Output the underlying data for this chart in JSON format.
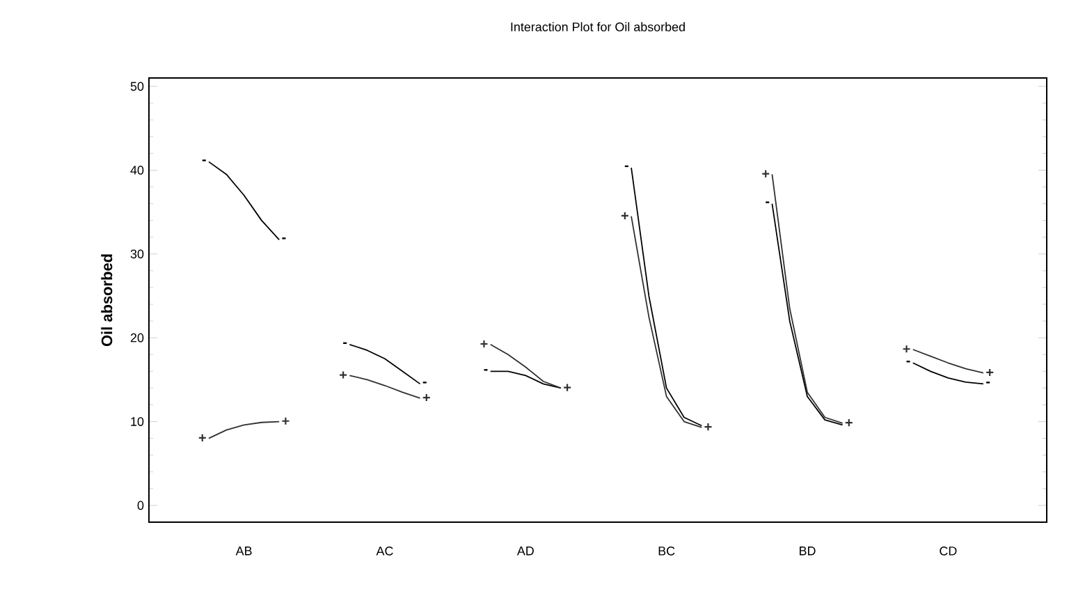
{
  "chart_data": {
    "type": "line",
    "title": "Interaction Plot for Oil absorbed",
    "ylabel": "Oil absorbed",
    "categories": [
      null,
      null,
      "AB",
      null,
      null,
      null,
      null,
      null,
      null,
      null,
      "AC",
      null,
      null,
      null,
      null,
      null,
      null,
      null,
      "AD",
      null,
      null,
      null,
      null,
      null,
      null,
      null,
      "BC",
      null,
      null,
      null,
      null,
      null,
      null,
      null,
      "BD",
      null,
      null,
      null,
      null,
      null,
      null,
      null,
      "CD",
      null,
      null
    ],
    "ylim": [
      -2,
      51
    ],
    "yticks": [
      0,
      10,
      20,
      30,
      40,
      50
    ],
    "series": [
      {
        "name": "-",
        "color": "#000000",
        "values": [
          41,
          39.5,
          37,
          34,
          31.7,
          null,
          null,
          null,
          19.2,
          18.5,
          17.5,
          16,
          14.5,
          null,
          null,
          null,
          16,
          16,
          15.5,
          14.5,
          14,
          null,
          null,
          null,
          40.3,
          25,
          14,
          10.5,
          9.5,
          null,
          null,
          null,
          36,
          22,
          13,
          10.2,
          9.6,
          null,
          null,
          null,
          17,
          16,
          15.2,
          14.7,
          14.5
        ]
      },
      {
        "name": "+",
        "color": "#303030",
        "values": [
          8,
          9,
          9.6,
          9.9,
          10,
          null,
          null,
          null,
          15.5,
          15,
          14.3,
          13.5,
          12.8,
          null,
          null,
          null,
          19.2,
          18,
          16.5,
          14.8,
          14,
          null,
          null,
          null,
          34.5,
          22.5,
          13,
          10,
          9.3,
          null,
          null,
          null,
          39.5,
          23.5,
          13.5,
          10.5,
          9.8,
          null,
          null,
          null,
          18.6,
          17.8,
          17,
          16.3,
          15.8
        ]
      }
    ]
  }
}
